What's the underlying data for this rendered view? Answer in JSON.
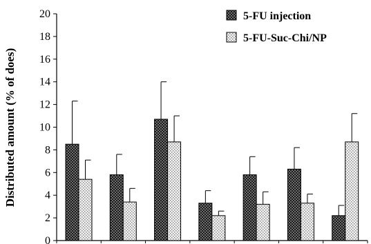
{
  "chart_data": {
    "type": "bar",
    "ylabel": "Distributed amount (% of does)",
    "xlabel": "",
    "ylim": [
      0,
      20
    ],
    "yticks": [
      0,
      2,
      4,
      6,
      8,
      10,
      12,
      14,
      16,
      18,
      20
    ],
    "categories": [
      "",
      "",
      "",
      "",
      "",
      "",
      ""
    ],
    "legend_position": "top-right",
    "grid": false,
    "series": [
      {
        "name": "5-FU injection",
        "pattern": "dark-checker",
        "color": "#2b2b2b",
        "values": [
          8.5,
          5.8,
          10.7,
          3.3,
          5.8,
          6.3,
          2.2
        ],
        "errors": [
          3.8,
          1.8,
          3.3,
          1.1,
          1.6,
          1.9,
          0.9
        ]
      },
      {
        "name": "5-FU-Suc-Chi/NP",
        "pattern": "light-dotted",
        "color": "#bfbfbf",
        "values": [
          5.4,
          3.4,
          8.7,
          2.2,
          3.2,
          3.3,
          8.7
        ],
        "errors": [
          1.7,
          1.2,
          2.3,
          0.4,
          1.1,
          0.8,
          2.5
        ]
      }
    ]
  }
}
